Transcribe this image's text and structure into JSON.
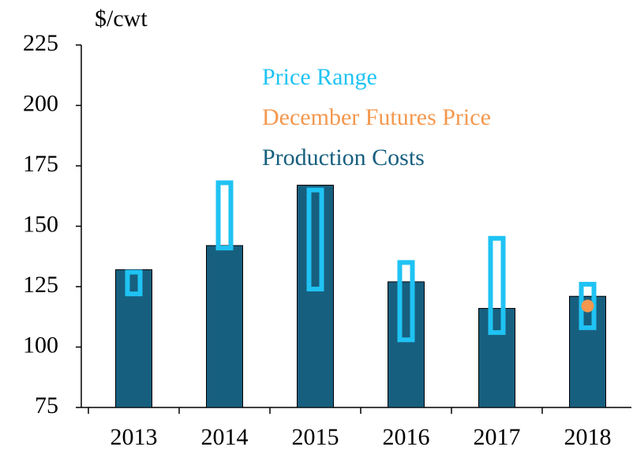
{
  "chart_data": {
    "type": "bar",
    "ylabel": "$/cwt",
    "categories": [
      "2013",
      "2014",
      "2015",
      "2016",
      "2017",
      "2018"
    ],
    "ylim": [
      75,
      225
    ],
    "yticks": [
      75,
      100,
      125,
      150,
      175,
      200,
      225
    ],
    "grid": false,
    "legend": "top-center",
    "series": [
      {
        "name": "Price Range",
        "color": "#1fc3f3",
        "low": [
          122,
          141,
          124,
          103,
          106,
          108
        ],
        "high": [
          131,
          168,
          165,
          135,
          145,
          126
        ]
      },
      {
        "name": "December Futures Price",
        "color": "#f4984f",
        "values": [
          null,
          null,
          null,
          null,
          null,
          117
        ]
      },
      {
        "name": "Production Costs",
        "color": "#175f7f",
        "values": [
          132,
          142,
          167,
          127,
          116,
          121
        ]
      }
    ]
  }
}
